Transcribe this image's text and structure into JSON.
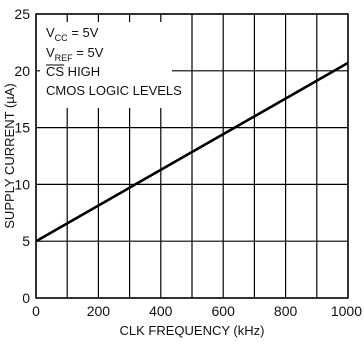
{
  "chart_data": {
    "type": "line",
    "title": "",
    "xlabel": "CLK FREQUENCY (kHz)",
    "ylabel": "SUPPLY CURRENT (µA)",
    "xlim": [
      0,
      1000
    ],
    "ylim": [
      0,
      25
    ],
    "x_ticks": [
      0,
      200,
      400,
      600,
      800,
      1000
    ],
    "y_ticks": [
      0,
      5,
      10,
      15,
      20,
      25
    ],
    "x_ticks_labels": [
      "0",
      "200",
      "400",
      "600",
      "800",
      "1000"
    ],
    "y_ticks_labels": [
      "0",
      "5",
      "10",
      "15",
      "20",
      "25"
    ],
    "x_minor_step": 100,
    "grid": true,
    "series": [
      {
        "x": [
          0,
          1000
        ],
        "y": [
          5,
          20.7
        ],
        "color": "#000000"
      }
    ],
    "annotations": {
      "vcc_main": "V",
      "vcc_sub": "CC",
      "vcc_rest": " = 5V",
      "vref_main": "V",
      "vref_sub": "REF",
      "vref_rest": " = 5V",
      "cs_bar": "CS",
      "cs_rest": " HIGH",
      "cmos": "CMOS LOGIC LEVELS"
    }
  }
}
